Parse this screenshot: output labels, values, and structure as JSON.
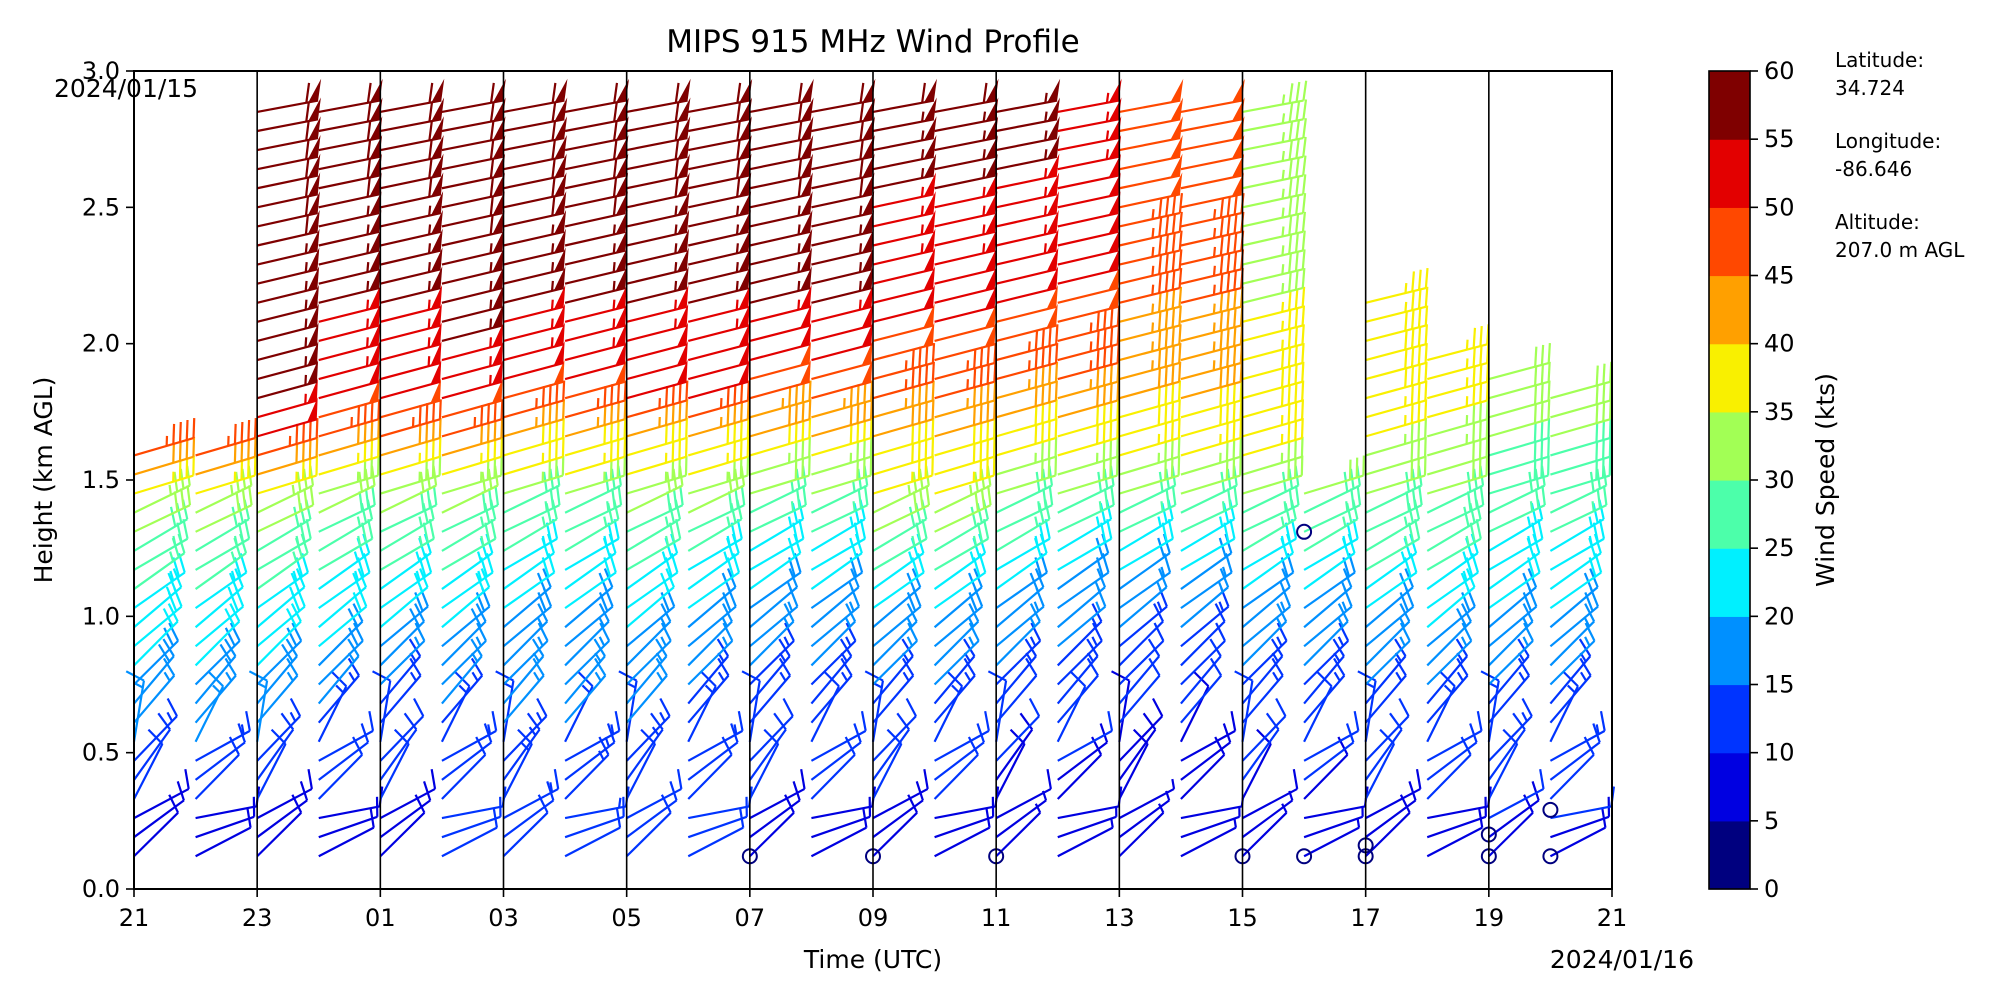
{
  "chart_data": {
    "type": "wind-barb-profile",
    "title": "MIPS 915 MHz Wind Profile",
    "xlabel": "Time (UTC)",
    "ylabel": "Height (km AGL)",
    "x_start_label": "2024/01/15",
    "x_end_label": "2024/01/16",
    "x_range_hours": [
      0,
      24
    ],
    "x_tick_labels": [
      "21",
      "23",
      "01",
      "03",
      "05",
      "07",
      "09",
      "11",
      "13",
      "15",
      "17",
      "19",
      "21"
    ],
    "ylim": [
      0,
      3.0
    ],
    "y_tick_labels": [
      "0.0",
      "0.5",
      "1.0",
      "1.5",
      "2.0",
      "2.5",
      "3.0"
    ],
    "y_tick_values": [
      0,
      0.5,
      1.0,
      1.5,
      2.0,
      2.5,
      3.0
    ],
    "colorbar": {
      "label": "Wind Speed (kts)",
      "ticks": [
        0,
        5,
        10,
        15,
        20,
        25,
        30,
        35,
        40,
        45,
        50,
        55,
        60
      ],
      "tick_labels": [
        "0",
        "5",
        "10",
        "15",
        "20",
        "25",
        "30",
        "35",
        "40",
        "45",
        "50",
        "55",
        "60"
      ],
      "colors": [
        "#00007f",
        "#0000e1",
        "#0034ff",
        "#0090ff",
        "#00f0ff",
        "#4cffaa",
        "#a2ff55",
        "#f9f000",
        "#ffa000",
        "#ff4800",
        "#e30000",
        "#7f0000"
      ]
    },
    "station_info": [
      "Latitude:",
      "34.724",
      "Longitude:",
      "-86.646",
      "Altitude:",
      "207.0 m AGL"
    ],
    "profile_hours": [
      0,
      1,
      2,
      3,
      4,
      5,
      6,
      7,
      8,
      9,
      10,
      11,
      12,
      13,
      14,
      15,
      16,
      17,
      18,
      19,
      20,
      21,
      22,
      23
    ],
    "speed_profiles_kts": [
      {
        "h": [
          0.15,
          0.4,
          0.6,
          0.9,
          1.2,
          1.45,
          1.6,
          1.8,
          2.2,
          2.9
        ],
        "s": [
          8,
          12,
          17,
          22,
          28,
          36,
          48,
          56,
          58,
          60
        ]
      },
      {
        "h": [
          0.15,
          0.4,
          0.6,
          0.9,
          1.2,
          1.45,
          1.6,
          1.8,
          2.2,
          2.9
        ],
        "s": [
          8,
          12,
          17,
          22,
          28,
          36,
          48,
          56,
          58,
          60
        ]
      },
      {
        "h": [
          0.15,
          0.4,
          0.6,
          0.9,
          1.2,
          1.45,
          1.6,
          1.8,
          2.2,
          2.9
        ],
        "s": [
          8,
          12,
          17,
          22,
          28,
          36,
          48,
          55,
          57,
          60
        ]
      },
      {
        "h": [
          0.15,
          0.5,
          0.7,
          1.0,
          1.3,
          1.5,
          1.65,
          1.8,
          2.2,
          2.9
        ],
        "s": [
          8,
          12,
          17,
          22,
          28,
          35,
          45,
          52,
          56,
          60
        ]
      },
      {
        "h": [
          0.15,
          0.6,
          0.8,
          1.0,
          1.3,
          1.5,
          1.65,
          1.8,
          2.2,
          2.9
        ],
        "s": [
          9,
          13,
          17,
          22,
          28,
          35,
          45,
          52,
          56,
          60
        ]
      },
      {
        "h": [
          0.15,
          0.6,
          0.8,
          1.0,
          1.3,
          1.5,
          1.65,
          1.8,
          2.2,
          2.9
        ],
        "s": [
          10,
          14,
          18,
          22,
          28,
          35,
          45,
          53,
          57,
          60
        ]
      },
      {
        "h": [
          0.15,
          0.6,
          0.9,
          1.1,
          1.35,
          1.5,
          1.7,
          1.9,
          2.3,
          2.9
        ],
        "s": [
          12,
          15,
          18,
          22,
          28,
          35,
          45,
          53,
          57,
          60
        ]
      },
      {
        "h": [
          0.15,
          0.6,
          0.9,
          1.1,
          1.35,
          1.5,
          1.7,
          1.9,
          2.3,
          2.9
        ],
        "s": [
          12,
          15,
          18,
          22,
          28,
          35,
          45,
          53,
          57,
          60
        ]
      },
      {
        "h": [
          0.15,
          0.5,
          0.8,
          1.0,
          1.2,
          1.4,
          1.6,
          1.8,
          2.2,
          2.9
        ],
        "s": [
          10,
          14,
          17,
          21,
          26,
          32,
          40,
          50,
          56,
          60
        ]
      },
      {
        "h": [
          0.15,
          0.5,
          0.8,
          1.0,
          1.2,
          1.4,
          1.6,
          1.8,
          2.2,
          2.9
        ],
        "s": [
          10,
          13,
          16,
          20,
          25,
          31,
          40,
          50,
          56,
          60
        ]
      },
      {
        "h": [
          0.15,
          0.5,
          0.8,
          1.0,
          1.2,
          1.4,
          1.6,
          1.8,
          2.2,
          2.9
        ],
        "s": [
          8,
          12,
          15,
          18,
          22,
          28,
          38,
          48,
          56,
          60
        ]
      },
      {
        "h": [
          0.15,
          0.5,
          0.8,
          1.0,
          1.2,
          1.4,
          1.6,
          1.8,
          2.2,
          2.9
        ],
        "s": [
          8,
          12,
          15,
          18,
          22,
          28,
          38,
          48,
          56,
          60
        ]
      },
      {
        "h": [
          0.15,
          0.5,
          0.8,
          1.0,
          1.2,
          1.4,
          1.6,
          1.8,
          2.2,
          2.9
        ],
        "s": [
          8,
          12,
          16,
          20,
          27,
          34,
          40,
          46,
          52,
          58
        ]
      },
      {
        "h": [
          0.15,
          0.5,
          0.8,
          1.0,
          1.2,
          1.4,
          1.6,
          1.8,
          2.2,
          2.9
        ],
        "s": [
          8,
          12,
          16,
          20,
          27,
          34,
          40,
          46,
          52,
          58
        ]
      },
      {
        "h": [
          0.15,
          0.5,
          0.8,
          1.0,
          1.2,
          1.4,
          1.6,
          1.8,
          2.2,
          2.9
        ],
        "s": [
          7,
          11,
          15,
          19,
          24,
          30,
          38,
          44,
          52,
          57
        ]
      },
      {
        "h": [
          0.15,
          0.5,
          0.8,
          1.0,
          1.2,
          1.4,
          1.6,
          1.8,
          2.2,
          2.9
        ],
        "s": [
          7,
          11,
          14,
          17,
          22,
          30,
          38,
          44,
          50,
          54
        ]
      },
      {
        "h": [
          0.15,
          0.5,
          0.8,
          1.0,
          1.2,
          1.4,
          1.6,
          1.8,
          2.2,
          2.9
        ],
        "s": [
          6,
          9,
          12,
          16,
          22,
          30,
          36,
          42,
          46,
          50
        ]
      },
      {
        "h": [
          0.15,
          0.5,
          0.8,
          1.0,
          1.2,
          1.4,
          1.6,
          1.8,
          2.2,
          2.9
        ],
        "s": [
          6,
          9,
          12,
          16,
          22,
          30,
          36,
          42,
          46,
          50
        ]
      },
      {
        "h": [
          0.15,
          0.4,
          0.7,
          1.0,
          1.2,
          1.4,
          1.6,
          1.8,
          2.0,
          2.3
        ],
        "s": [
          7,
          10,
          14,
          18,
          24,
          30,
          36,
          40,
          36,
          34
        ]
      },
      {
        "h": [
          0.15,
          0.4,
          0.7,
          1.0,
          1.2,
          1.4,
          1.6,
          1.8,
          2.0,
          2.3
        ],
        "s": [
          7,
          10,
          14,
          18,
          24,
          30,
          36,
          40,
          36,
          34
        ]
      },
      {
        "h": [
          0.15,
          0.4,
          0.7,
          1.0,
          1.2,
          1.4,
          1.6,
          1.8,
          2.0,
          2.3
        ],
        "s": [
          8,
          11,
          15,
          20,
          26,
          30,
          34,
          38,
          38,
          36
        ]
      },
      {
        "h": [
          0.15,
          0.4,
          0.7,
          1.0,
          1.2,
          1.4,
          1.6,
          1.8,
          2.0,
          2.3
        ],
        "s": [
          8,
          11,
          15,
          22,
          27,
          30,
          34,
          36,
          36,
          36
        ]
      },
      {
        "h": [
          0.15,
          0.4,
          0.7,
          1.0,
          1.2,
          1.4,
          1.6,
          1.8,
          2.0,
          2.3
        ],
        "s": [
          9,
          12,
          15,
          20,
          24,
          28,
          30,
          30,
          30,
          30
        ]
      },
      {
        "h": [
          0.15,
          0.4,
          0.7,
          1.0,
          1.2,
          1.4,
          1.6,
          1.8,
          2.0,
          2.3
        ],
        "s": [
          9,
          12,
          15,
          20,
          24,
          28,
          30,
          30,
          30,
          30
        ]
      }
    ],
    "profile_top_km": [
      1.6,
      1.6,
      2.9,
      2.9,
      2.9,
      2.9,
      2.9,
      2.9,
      2.9,
      2.9,
      2.9,
      2.9,
      2.9,
      2.9,
      2.9,
      2.9,
      2.9,
      2.9,
      2.9,
      1.5,
      2.2,
      2.0,
      1.9,
      1.8
    ],
    "calm_markers": [
      {
        "hour": 10,
        "km": 0.12
      },
      {
        "hour": 12,
        "km": 0.12
      },
      {
        "hour": 14,
        "km": 0.12
      },
      {
        "hour": 18,
        "km": 0.12
      },
      {
        "hour": 19,
        "km": 0.12
      },
      {
        "hour": 19,
        "km": 1.31
      },
      {
        "hour": 20,
        "km": 0.12
      },
      {
        "hour": 20,
        "km": 0.16
      },
      {
        "hour": 22,
        "km": 0.12
      },
      {
        "hour": 22,
        "km": 0.2
      },
      {
        "hour": 23,
        "km": 0.12
      },
      {
        "hour": 23,
        "km": 0.29
      }
    ]
  }
}
